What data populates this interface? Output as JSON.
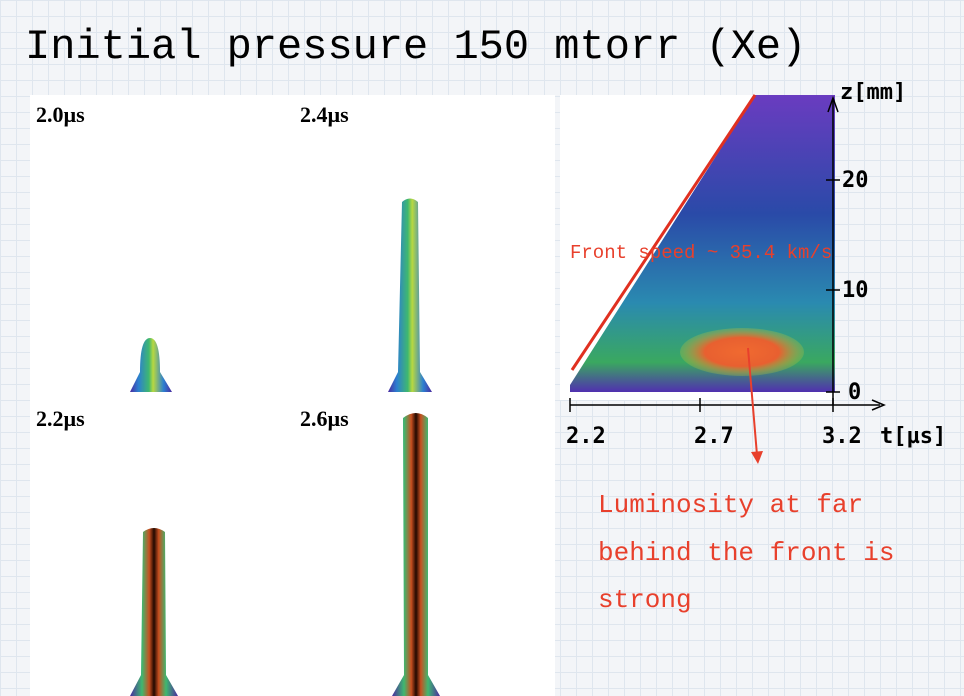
{
  "title": "Initial pressure 150 mtorr (Xe)",
  "frames": [
    {
      "label": "2.0µs"
    },
    {
      "label": "2.4µs"
    },
    {
      "label": "2.2µs"
    },
    {
      "label": "2.6µs"
    }
  ],
  "streak": {
    "z_axis_label": "z[mm]",
    "z_ticks": [
      "0",
      "10",
      "20"
    ],
    "t_axis_label": "t[µs]",
    "t_ticks": [
      "2.2",
      "2.7",
      "3.2"
    ],
    "fit_label": "Front speed ~ 35.4 km/s"
  },
  "annotation": [
    "Luminosity at far",
    "behind the front is",
    "strong"
  ]
}
